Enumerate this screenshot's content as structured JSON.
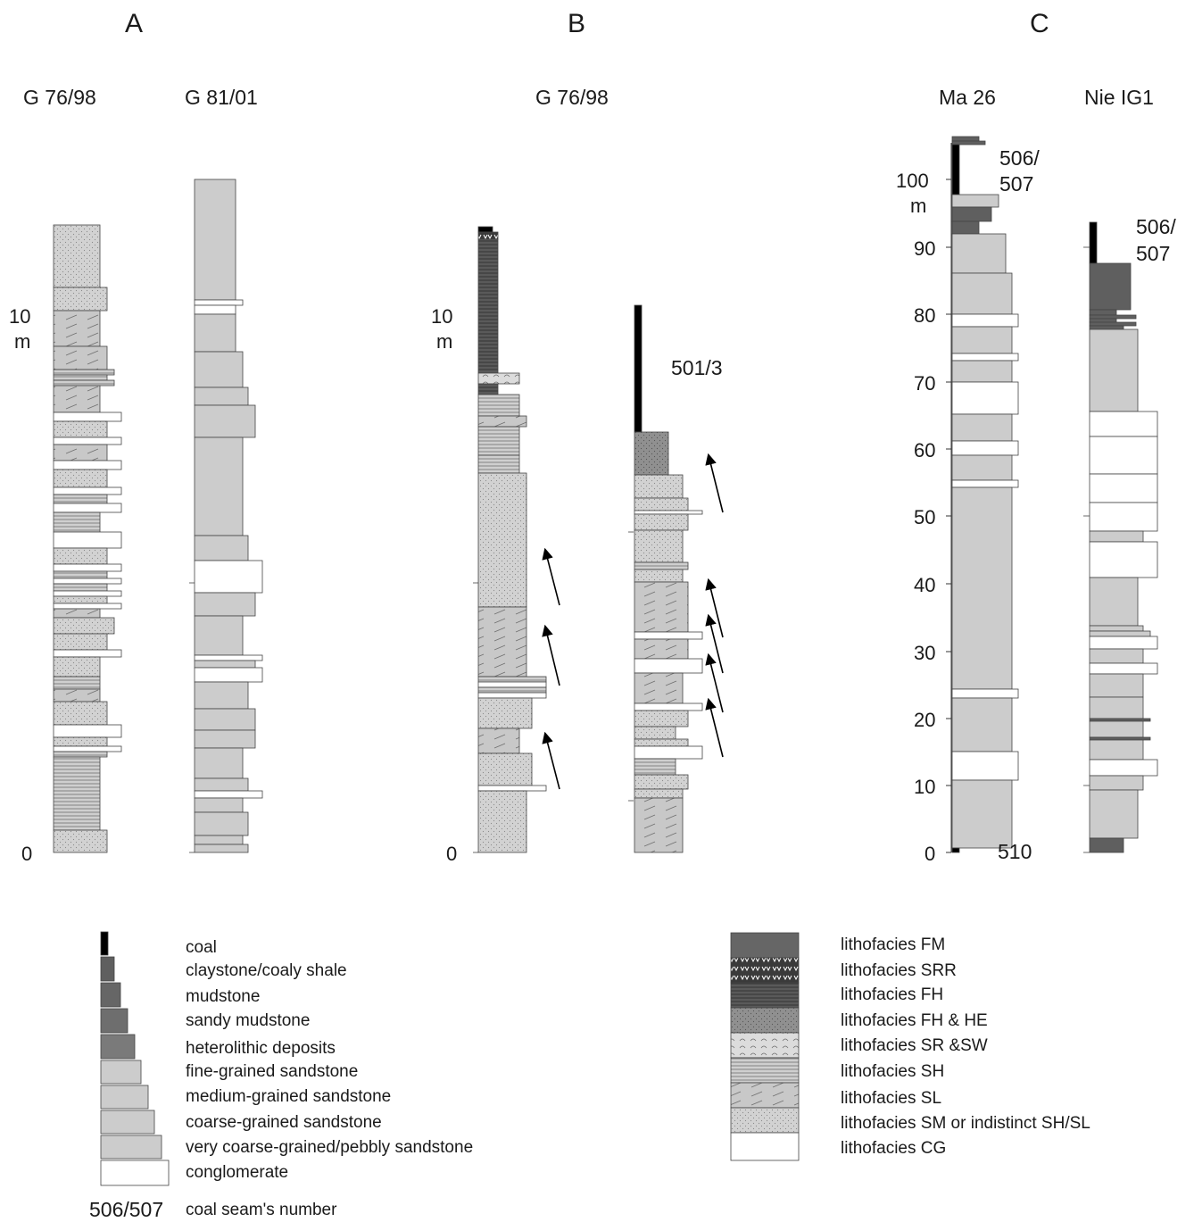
{
  "colors": {
    "coal": "#000000",
    "claystone": "#5f5f5f",
    "mudstone": "#666666",
    "sandy_mudstone": "#6e6e6e",
    "heterolithic": "#7a7a7a",
    "sandstone": "#cccccc",
    "conglomerate": "#ffffff",
    "outline": "#333333"
  },
  "panels": {
    "A": {
      "letter": "A",
      "wells": [
        "G 76/98",
        "G 81/01"
      ],
      "ticks": [
        "0",
        "10",
        "m"
      ]
    },
    "B": {
      "letter": "B",
      "wells": [
        "G 76/98"
      ],
      "ticks": [
        "0",
        "10",
        "m"
      ],
      "seam": "501/3"
    },
    "C": {
      "letter": "C",
      "wells": [
        "Ma 26",
        "Nie IG1"
      ],
      "ticks": [
        "0",
        "10",
        "20",
        "30",
        "40",
        "50",
        "60",
        "70",
        "80",
        "90",
        "100",
        "m"
      ],
      "seams": [
        "506/",
        "507",
        "506/",
        "507",
        "510"
      ]
    }
  },
  "legend_grain": {
    "items": [
      {
        "label": "coal",
        "color": "#000000"
      },
      {
        "label": "claystone/coaly shale",
        "color": "#5f5f5f"
      },
      {
        "label": "mudstone",
        "color": "#666666"
      },
      {
        "label": "sandy mudstone",
        "color": "#6e6e6e"
      },
      {
        "label": "heterolithic deposits",
        "color": "#7a7a7a"
      },
      {
        "label": "fine-grained sandstone",
        "color": "#cccccc"
      },
      {
        "label": "medium-grained sandstone",
        "color": "#cccccc"
      },
      {
        "label": "coarse-grained sandstone",
        "color": "#cccccc"
      },
      {
        "label": "very coarse-grained/pebbly sandstone",
        "color": "#cccccc"
      },
      {
        "label": "conglomerate",
        "color": "#ffffff"
      }
    ],
    "seam_example": "506/507",
    "seam_text": "coal seam's number"
  },
  "legend_facies": {
    "items": [
      {
        "label": "lithofacies FM",
        "pattern": "fm"
      },
      {
        "label": "lithofacies SRR",
        "pattern": "srr"
      },
      {
        "label": "lithofacies FH",
        "pattern": "fh"
      },
      {
        "label": "lithofacies FH & HE",
        "pattern": "fhhe"
      },
      {
        "label": "lithofacies SR &SW",
        "pattern": "srsw"
      },
      {
        "label": "lithofacies SH",
        "pattern": "sh"
      },
      {
        "label": "lithofacies SL",
        "pattern": "sl"
      },
      {
        "label": "lithofacies SM or indistinct SH/SL",
        "pattern": "sm"
      },
      {
        "label": "lithofacies CG",
        "pattern": "cg"
      }
    ]
  }
}
